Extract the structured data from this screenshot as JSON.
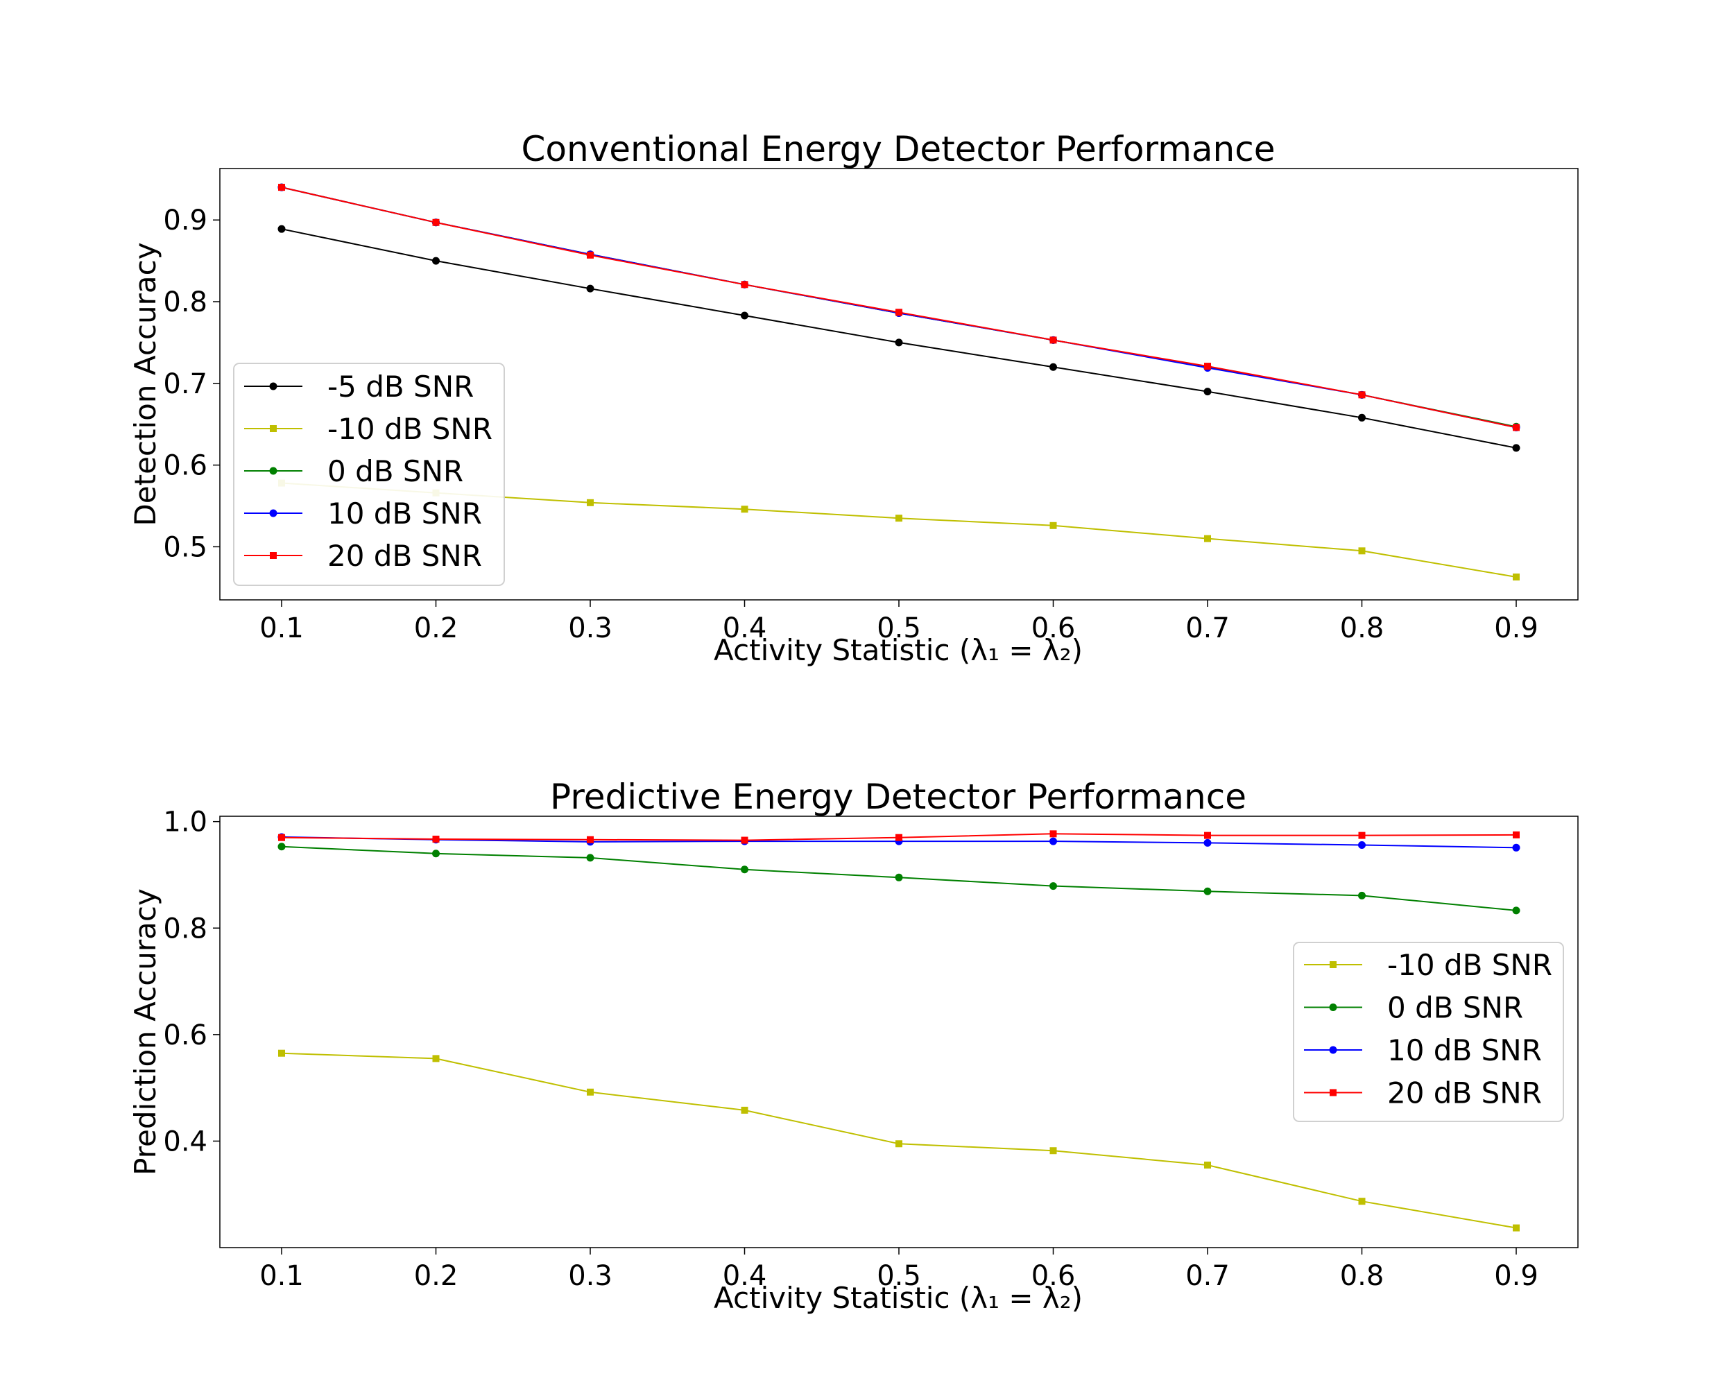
{
  "colors": {
    "black": "#000000",
    "yellow": "#bfbf00",
    "green": "#008000",
    "blue": "#0000ff",
    "red": "#ff0000"
  },
  "chart_data": [
    {
      "type": "line",
      "title": "Conventional Energy Detector Performance",
      "xlabel": "Activity Statistic (λ₁ = λ₂)",
      "ylabel": "Detection Accuracy",
      "x": [
        0.1,
        0.2,
        0.3,
        0.4,
        0.5,
        0.6,
        0.7,
        0.8,
        0.9
      ],
      "xlim": [
        0.06,
        0.94
      ],
      "ylim": [
        0.435,
        0.963
      ],
      "xticks": [
        "0.1",
        "0.2",
        "0.3",
        "0.4",
        "0.5",
        "0.6",
        "0.7",
        "0.8",
        "0.9"
      ],
      "yticks": [
        "0.5",
        "0.6",
        "0.7",
        "0.8",
        "0.9"
      ],
      "ytick_values": [
        0.5,
        0.6,
        0.7,
        0.8,
        0.9
      ],
      "grid": false,
      "legend_position": "center-left",
      "series": [
        {
          "name": "-5 dB SNR",
          "color": "#000000",
          "marker": "circle",
          "values": [
            0.889,
            0.85,
            0.816,
            0.783,
            0.75,
            0.72,
            0.69,
            0.658,
            0.621
          ]
        },
        {
          "name": "-10 dB SNR",
          "color": "#bfbf00",
          "marker": "square",
          "values": [
            0.578,
            0.566,
            0.554,
            0.546,
            0.535,
            0.526,
            0.51,
            0.495,
            0.463
          ]
        },
        {
          "name": "0 dB SNR",
          "color": "#008000",
          "marker": "circle",
          "values": [
            0.94,
            0.897,
            0.858,
            0.821,
            0.786,
            0.753,
            0.72,
            0.686,
            0.647
          ]
        },
        {
          "name": "10 dB SNR",
          "color": "#0000ff",
          "marker": "circle",
          "values": [
            0.94,
            0.897,
            0.858,
            0.821,
            0.786,
            0.753,
            0.719,
            0.686,
            0.646
          ]
        },
        {
          "name": "20 dB SNR",
          "color": "#ff0000",
          "marker": "square",
          "values": [
            0.94,
            0.897,
            0.857,
            0.821,
            0.787,
            0.753,
            0.721,
            0.686,
            0.646
          ]
        }
      ]
    },
    {
      "type": "line",
      "title": "Predictive Energy Detector Performance",
      "xlabel": "Activity Statistic (λ₁ = λ₂)",
      "ylabel": "Prediction Accuracy",
      "x": [
        0.1,
        0.2,
        0.3,
        0.4,
        0.5,
        0.6,
        0.7,
        0.8,
        0.9
      ],
      "xlim": [
        0.06,
        0.94
      ],
      "ylim": [
        0.2,
        1.01
      ],
      "xticks": [
        "0.1",
        "0.2",
        "0.3",
        "0.4",
        "0.5",
        "0.6",
        "0.7",
        "0.8",
        "0.9"
      ],
      "yticks": [
        "0.4",
        "0.6",
        "0.8",
        "1.0"
      ],
      "ytick_values": [
        0.4,
        0.6,
        0.8,
        1.0
      ],
      "grid": false,
      "legend_position": "center-right",
      "series": [
        {
          "name": "-10 dB SNR",
          "color": "#bfbf00",
          "marker": "square",
          "values": [
            0.565,
            0.555,
            0.492,
            0.458,
            0.395,
            0.382,
            0.355,
            0.287,
            0.237
          ]
        },
        {
          "name": "0 dB SNR",
          "color": "#008000",
          "marker": "circle",
          "values": [
            0.953,
            0.94,
            0.932,
            0.91,
            0.895,
            0.879,
            0.869,
            0.861,
            0.833
          ]
        },
        {
          "name": "10 dB SNR",
          "color": "#0000ff",
          "marker": "circle",
          "values": [
            0.971,
            0.966,
            0.962,
            0.963,
            0.963,
            0.963,
            0.96,
            0.956,
            0.951
          ]
        },
        {
          "name": "20 dB SNR",
          "color": "#ff0000",
          "marker": "square",
          "values": [
            0.97,
            0.967,
            0.966,
            0.965,
            0.97,
            0.977,
            0.974,
            0.974,
            0.975
          ]
        }
      ]
    }
  ]
}
